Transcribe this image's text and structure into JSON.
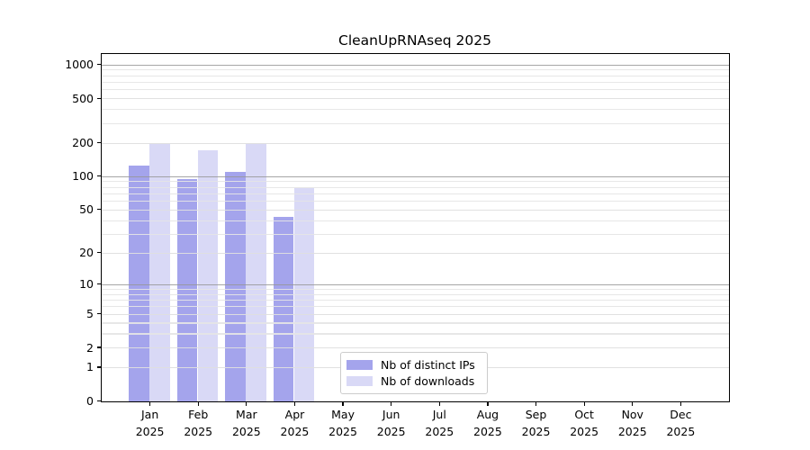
{
  "chart_data": {
    "type": "bar",
    "title": "CleanUpRNAseq 2025",
    "categories": [
      {
        "month": "Jan",
        "year": "2025"
      },
      {
        "month": "Feb",
        "year": "2025"
      },
      {
        "month": "Mar",
        "year": "2025"
      },
      {
        "month": "Apr",
        "year": "2025"
      },
      {
        "month": "May",
        "year": "2025"
      },
      {
        "month": "Jun",
        "year": "2025"
      },
      {
        "month": "Jul",
        "year": "2025"
      },
      {
        "month": "Aug",
        "year": "2025"
      },
      {
        "month": "Sep",
        "year": "2025"
      },
      {
        "month": "Oct",
        "year": "2025"
      },
      {
        "month": "Nov",
        "year": "2025"
      },
      {
        "month": "Dec",
        "year": "2025"
      }
    ],
    "series": [
      {
        "name": "Nb of distinct IPs",
        "color": "#a4a4ec",
        "values": [
          124,
          95,
          110,
          43,
          0,
          0,
          0,
          0,
          0,
          0,
          0,
          0
        ]
      },
      {
        "name": "Nb of downloads",
        "color": "#d9d9f6",
        "values": [
          200,
          170,
          200,
          78,
          0,
          0,
          0,
          0,
          0,
          0,
          0,
          0
        ]
      }
    ],
    "y_scale": "log10(value+1) with 0 baseline",
    "ylim": [
      0,
      1250
    ],
    "y_ticks": [
      0,
      1,
      2,
      5,
      10,
      20,
      50,
      100,
      200,
      500,
      1000
    ],
    "y_major_gridlines": [
      10,
      100,
      1000
    ],
    "y_light_gridlines": [
      1,
      2,
      5,
      20,
      50,
      200,
      500
    ],
    "y_minor_gridlines": [
      3,
      4,
      6,
      7,
      8,
      9,
      30,
      40,
      60,
      70,
      80,
      90,
      300,
      400,
      600,
      700,
      800,
      900
    ],
    "grid": "on",
    "legend": {
      "position": "inside-bottom-center",
      "labels": [
        "Nb of distinct IPs",
        "Nb of downloads"
      ]
    }
  },
  "colors": {
    "bar_distinct_ips": "#a4a4ec",
    "bar_downloads": "#d9d9f6",
    "grid_major": "#969696",
    "grid_minor": "#e5e5e5",
    "frame": "#000000",
    "text": "#000000",
    "legend_border": "#cccccc",
    "background": "#ffffff"
  }
}
